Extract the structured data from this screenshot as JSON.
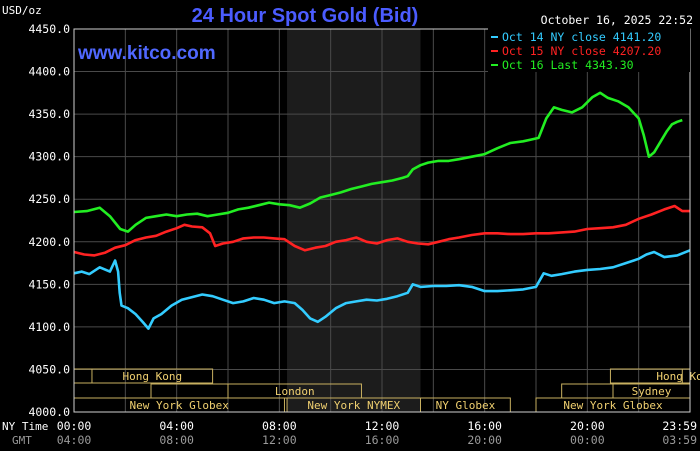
{
  "chart_data": {
    "type": "line",
    "title": "24 Hour Spot Gold (Bid)",
    "brand": "www.kitco.com",
    "timestamp": "October 16, 2025 22:52",
    "ylabel": "USD/oz",
    "ylim": [
      4000,
      4450
    ],
    "y_ticks": [
      "4450.0",
      "4400.0",
      "4350.0",
      "4300.0",
      "4250.0",
      "4200.0",
      "4150.0",
      "4100.0",
      "4050.0",
      "4000.0"
    ],
    "x_range_hours": [
      0,
      24
    ],
    "x_ticks": [
      {
        "hour": 0,
        "ny": "00:00",
        "gmt": "04:00"
      },
      {
        "hour": 4,
        "ny": "04:00",
        "gmt": "08:00"
      },
      {
        "hour": 8,
        "ny": "08:00",
        "gmt": "12:00"
      },
      {
        "hour": 12,
        "ny": "12:00",
        "gmt": "16:00"
      },
      {
        "hour": 16,
        "ny": "16:00",
        "gmt": "20:00"
      },
      {
        "hour": 20,
        "ny": "20:00",
        "gmt": "00:00"
      },
      {
        "hour": 24,
        "ny": "23:59",
        "gmt": "03:59"
      }
    ],
    "x_row_labels": {
      "ny": "NY Time",
      "gmt": "GMT"
    },
    "grid": true,
    "shaded_hours": [
      8.3,
      13.5
    ],
    "legend": [
      {
        "label": "Oct 14 NY close 4141.20",
        "color": "#33ccff"
      },
      {
        "label": "Oct 15 NY close 4207.20",
        "color": "#ff2222"
      },
      {
        "label": "Oct 16 Last 4343.30",
        "color": "#22ee22"
      }
    ],
    "series": [
      {
        "name": "Oct 14",
        "color": "#33ccff",
        "points": [
          [
            0,
            4163
          ],
          [
            0.3,
            4165
          ],
          [
            0.6,
            4162
          ],
          [
            1,
            4170
          ],
          [
            1.4,
            4165
          ],
          [
            1.6,
            4178
          ],
          [
            1.72,
            4165
          ],
          [
            1.78,
            4140
          ],
          [
            1.85,
            4125
          ],
          [
            2.1,
            4122
          ],
          [
            2.4,
            4115
          ],
          [
            2.7,
            4105
          ],
          [
            2.9,
            4098
          ],
          [
            3.1,
            4110
          ],
          [
            3.4,
            4115
          ],
          [
            3.8,
            4125
          ],
          [
            4.2,
            4132
          ],
          [
            4.6,
            4135
          ],
          [
            5,
            4138
          ],
          [
            5.4,
            4136
          ],
          [
            5.8,
            4132
          ],
          [
            6.2,
            4128
          ],
          [
            6.6,
            4130
          ],
          [
            7,
            4134
          ],
          [
            7.4,
            4132
          ],
          [
            7.8,
            4128
          ],
          [
            8.2,
            4130
          ],
          [
            8.6,
            4128
          ],
          [
            8.9,
            4120
          ],
          [
            9.2,
            4110
          ],
          [
            9.5,
            4106
          ],
          [
            9.8,
            4112
          ],
          [
            10.2,
            4122
          ],
          [
            10.6,
            4128
          ],
          [
            11,
            4130
          ],
          [
            11.4,
            4132
          ],
          [
            11.8,
            4131
          ],
          [
            12.2,
            4133
          ],
          [
            12.6,
            4136
          ],
          [
            13,
            4140
          ],
          [
            13.2,
            4150
          ],
          [
            13.5,
            4147
          ],
          [
            14,
            4148
          ],
          [
            14.5,
            4148
          ],
          [
            15,
            4149
          ],
          [
            15.5,
            4147
          ],
          [
            16,
            4142
          ],
          [
            16.5,
            4142
          ],
          [
            17,
            4143
          ],
          [
            17.5,
            4144
          ],
          [
            18,
            4147
          ],
          [
            18.3,
            4163
          ],
          [
            18.6,
            4160
          ],
          [
            19,
            4162
          ],
          [
            19.5,
            4165
          ],
          [
            20,
            4167
          ],
          [
            20.5,
            4168
          ],
          [
            21,
            4170
          ],
          [
            21.5,
            4175
          ],
          [
            22,
            4180
          ],
          [
            22.3,
            4185
          ],
          [
            22.6,
            4188
          ],
          [
            23,
            4182
          ],
          [
            23.5,
            4184
          ],
          [
            24,
            4190
          ]
        ]
      },
      {
        "name": "Oct 15",
        "color": "#ff2222",
        "points": [
          [
            0,
            4188
          ],
          [
            0.4,
            4185
          ],
          [
            0.8,
            4184
          ],
          [
            1.2,
            4187
          ],
          [
            1.6,
            4193
          ],
          [
            2,
            4196
          ],
          [
            2.4,
            4202
          ],
          [
            2.8,
            4205
          ],
          [
            3.2,
            4207
          ],
          [
            3.6,
            4212
          ],
          [
            4,
            4216
          ],
          [
            4.3,
            4220
          ],
          [
            4.6,
            4218
          ],
          [
            5,
            4217
          ],
          [
            5.3,
            4210
          ],
          [
            5.5,
            4195
          ],
          [
            5.8,
            4198
          ],
          [
            6.2,
            4200
          ],
          [
            6.6,
            4204
          ],
          [
            7,
            4205
          ],
          [
            7.4,
            4205
          ],
          [
            7.8,
            4204
          ],
          [
            8.2,
            4203
          ],
          [
            8.6,
            4195
          ],
          [
            9,
            4190
          ],
          [
            9.4,
            4193
          ],
          [
            9.8,
            4195
          ],
          [
            10.2,
            4200
          ],
          [
            10.6,
            4202
          ],
          [
            11,
            4205
          ],
          [
            11.4,
            4200
          ],
          [
            11.8,
            4198
          ],
          [
            12.2,
            4202
          ],
          [
            12.6,
            4204
          ],
          [
            13,
            4200
          ],
          [
            13.4,
            4198
          ],
          [
            13.8,
            4197
          ],
          [
            14.2,
            4200
          ],
          [
            14.6,
            4203
          ],
          [
            15,
            4205
          ],
          [
            15.5,
            4208
          ],
          [
            16,
            4210
          ],
          [
            16.5,
            4210
          ],
          [
            17,
            4209
          ],
          [
            17.5,
            4209
          ],
          [
            18,
            4210
          ],
          [
            18.5,
            4210
          ],
          [
            19,
            4211
          ],
          [
            19.5,
            4212
          ],
          [
            20,
            4215
          ],
          [
            20.5,
            4216
          ],
          [
            21,
            4217
          ],
          [
            21.5,
            4220
          ],
          [
            22,
            4227
          ],
          [
            22.5,
            4232
          ],
          [
            23,
            4238
          ],
          [
            23.4,
            4242
          ],
          [
            23.7,
            4236
          ],
          [
            24,
            4236
          ]
        ]
      },
      {
        "name": "Oct 16",
        "color": "#22ee22",
        "points": [
          [
            0,
            4235
          ],
          [
            0.5,
            4236
          ],
          [
            1,
            4240
          ],
          [
            1.4,
            4230
          ],
          [
            1.8,
            4215
          ],
          [
            2.1,
            4212
          ],
          [
            2.4,
            4220
          ],
          [
            2.8,
            4228
          ],
          [
            3.2,
            4230
          ],
          [
            3.6,
            4232
          ],
          [
            4,
            4230
          ],
          [
            4.4,
            4232
          ],
          [
            4.8,
            4233
          ],
          [
            5.2,
            4230
          ],
          [
            5.6,
            4232
          ],
          [
            6,
            4234
          ],
          [
            6.4,
            4238
          ],
          [
            6.8,
            4240
          ],
          [
            7.2,
            4243
          ],
          [
            7.6,
            4246
          ],
          [
            8,
            4244
          ],
          [
            8.4,
            4243
          ],
          [
            8.8,
            4240
          ],
          [
            9.2,
            4245
          ],
          [
            9.6,
            4252
          ],
          [
            10,
            4255
          ],
          [
            10.4,
            4258
          ],
          [
            10.8,
            4262
          ],
          [
            11.2,
            4265
          ],
          [
            11.6,
            4268
          ],
          [
            12,
            4270
          ],
          [
            12.4,
            4272
          ],
          [
            12.8,
            4275
          ],
          [
            13,
            4277
          ],
          [
            13.2,
            4285
          ],
          [
            13.5,
            4290
          ],
          [
            13.8,
            4293
          ],
          [
            14.2,
            4295
          ],
          [
            14.6,
            4295
          ],
          [
            15,
            4297
          ],
          [
            15.5,
            4300
          ],
          [
            16,
            4303
          ],
          [
            16.5,
            4310
          ],
          [
            17,
            4316
          ],
          [
            17.5,
            4318
          ],
          [
            17.8,
            4320
          ],
          [
            18.1,
            4322
          ],
          [
            18.4,
            4345
          ],
          [
            18.7,
            4358
          ],
          [
            19,
            4355
          ],
          [
            19.4,
            4352
          ],
          [
            19.8,
            4358
          ],
          [
            20.2,
            4370
          ],
          [
            20.5,
            4375
          ],
          [
            20.8,
            4369
          ],
          [
            21.2,
            4365
          ],
          [
            21.6,
            4358
          ],
          [
            22,
            4345
          ],
          [
            22.2,
            4325
          ],
          [
            22.4,
            4300
          ],
          [
            22.6,
            4305
          ],
          [
            22.9,
            4320
          ],
          [
            23.1,
            4330
          ],
          [
            23.3,
            4338
          ],
          [
            23.5,
            4341
          ],
          [
            23.7,
            4343
          ]
        ]
      }
    ],
    "sessions": [
      {
        "label": "Hong Kong",
        "start": 0,
        "end": 5.4,
        "row": 0,
        "tail": 0.7
      },
      {
        "label": "London",
        "start": 3.0,
        "end": 11.2,
        "row": 1,
        "tail": 3.0
      },
      {
        "label": "New York Globex",
        "start": 0,
        "end": 8.2,
        "row": 2,
        "tail": 0
      },
      {
        "label": "New York NYMEX",
        "start": 8.3,
        "end": 13.5,
        "row": 2,
        "tail": 0
      },
      {
        "label": "NY Globex",
        "start": 13.5,
        "end": 17.0,
        "row": 2,
        "tail": 0
      },
      {
        "label": "Hong Kong",
        "start": 20.9,
        "end": 24,
        "row": 0,
        "tail": 2.8
      },
      {
        "label": "Sydney",
        "start": 19.0,
        "end": 24,
        "row": 1,
        "tail": 2.0
      },
      {
        "label": "New York Globex",
        "start": 18.0,
        "end": 24,
        "row": 2,
        "tail": 0
      }
    ]
  }
}
